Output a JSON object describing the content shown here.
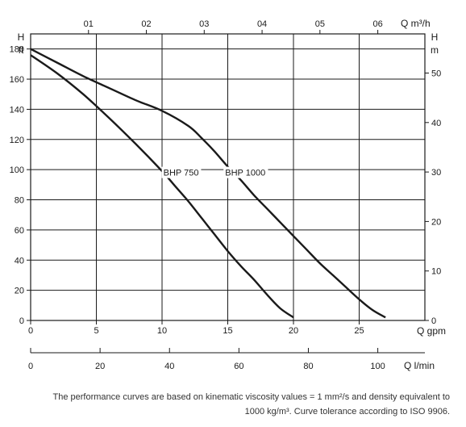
{
  "chart_data": {
    "type": "line",
    "title": "",
    "caption": [
      "The performance curves are based on kinematic viscosity values = 1 mm²/s and density equivalent to",
      "1000 kg/m³. Curve tolerance according to ISO 9906."
    ],
    "axes": {
      "x_bottom": {
        "label": "Q gpm",
        "range": [
          0,
          30
        ],
        "ticks": [
          "0",
          "5",
          "10",
          "15",
          "20",
          "25"
        ]
      },
      "x_top": {
        "label": "Q m³/h",
        "ticks": [
          "01",
          "02",
          "03",
          "04",
          "05",
          "06"
        ]
      },
      "y_left": {
        "label_top": "H",
        "label_bottom": "ft",
        "range": [
          0,
          190
        ],
        "ticks": [
          "0",
          "20",
          "40",
          "60",
          "80",
          "100",
          "120",
          "140",
          "160",
          "180"
        ]
      },
      "y_right": {
        "label_top": "H",
        "label_bottom": "m",
        "ticks": [
          "0",
          "10",
          "20",
          "30",
          "40",
          "50"
        ]
      },
      "x_secondary": {
        "label": "Q l/min",
        "ticks": [
          "0",
          "20",
          "40",
          "60",
          "80",
          "100"
        ]
      }
    },
    "grid": true,
    "series": [
      {
        "name": "BHP 750",
        "x": [
          0,
          2,
          4,
          6,
          8,
          10,
          11,
          12,
          13,
          14,
          15,
          16,
          17,
          18,
          19,
          20
        ],
        "y": [
          176,
          164,
          150,
          134,
          117,
          99,
          89,
          79,
          68,
          57,
          46,
          36,
          27,
          17,
          8,
          2
        ]
      },
      {
        "name": "BHP 1000",
        "x": [
          0,
          2,
          4,
          6,
          8,
          10,
          12,
          13,
          14,
          15,
          16,
          17,
          18,
          19,
          20,
          21,
          22,
          23,
          24,
          25,
          26,
          27
        ],
        "y": [
          180,
          171,
          162,
          154,
          146,
          139,
          129,
          121,
          112,
          102,
          93,
          83,
          74,
          65,
          56,
          47,
          38,
          30,
          22,
          14,
          7,
          2
        ]
      }
    ]
  }
}
